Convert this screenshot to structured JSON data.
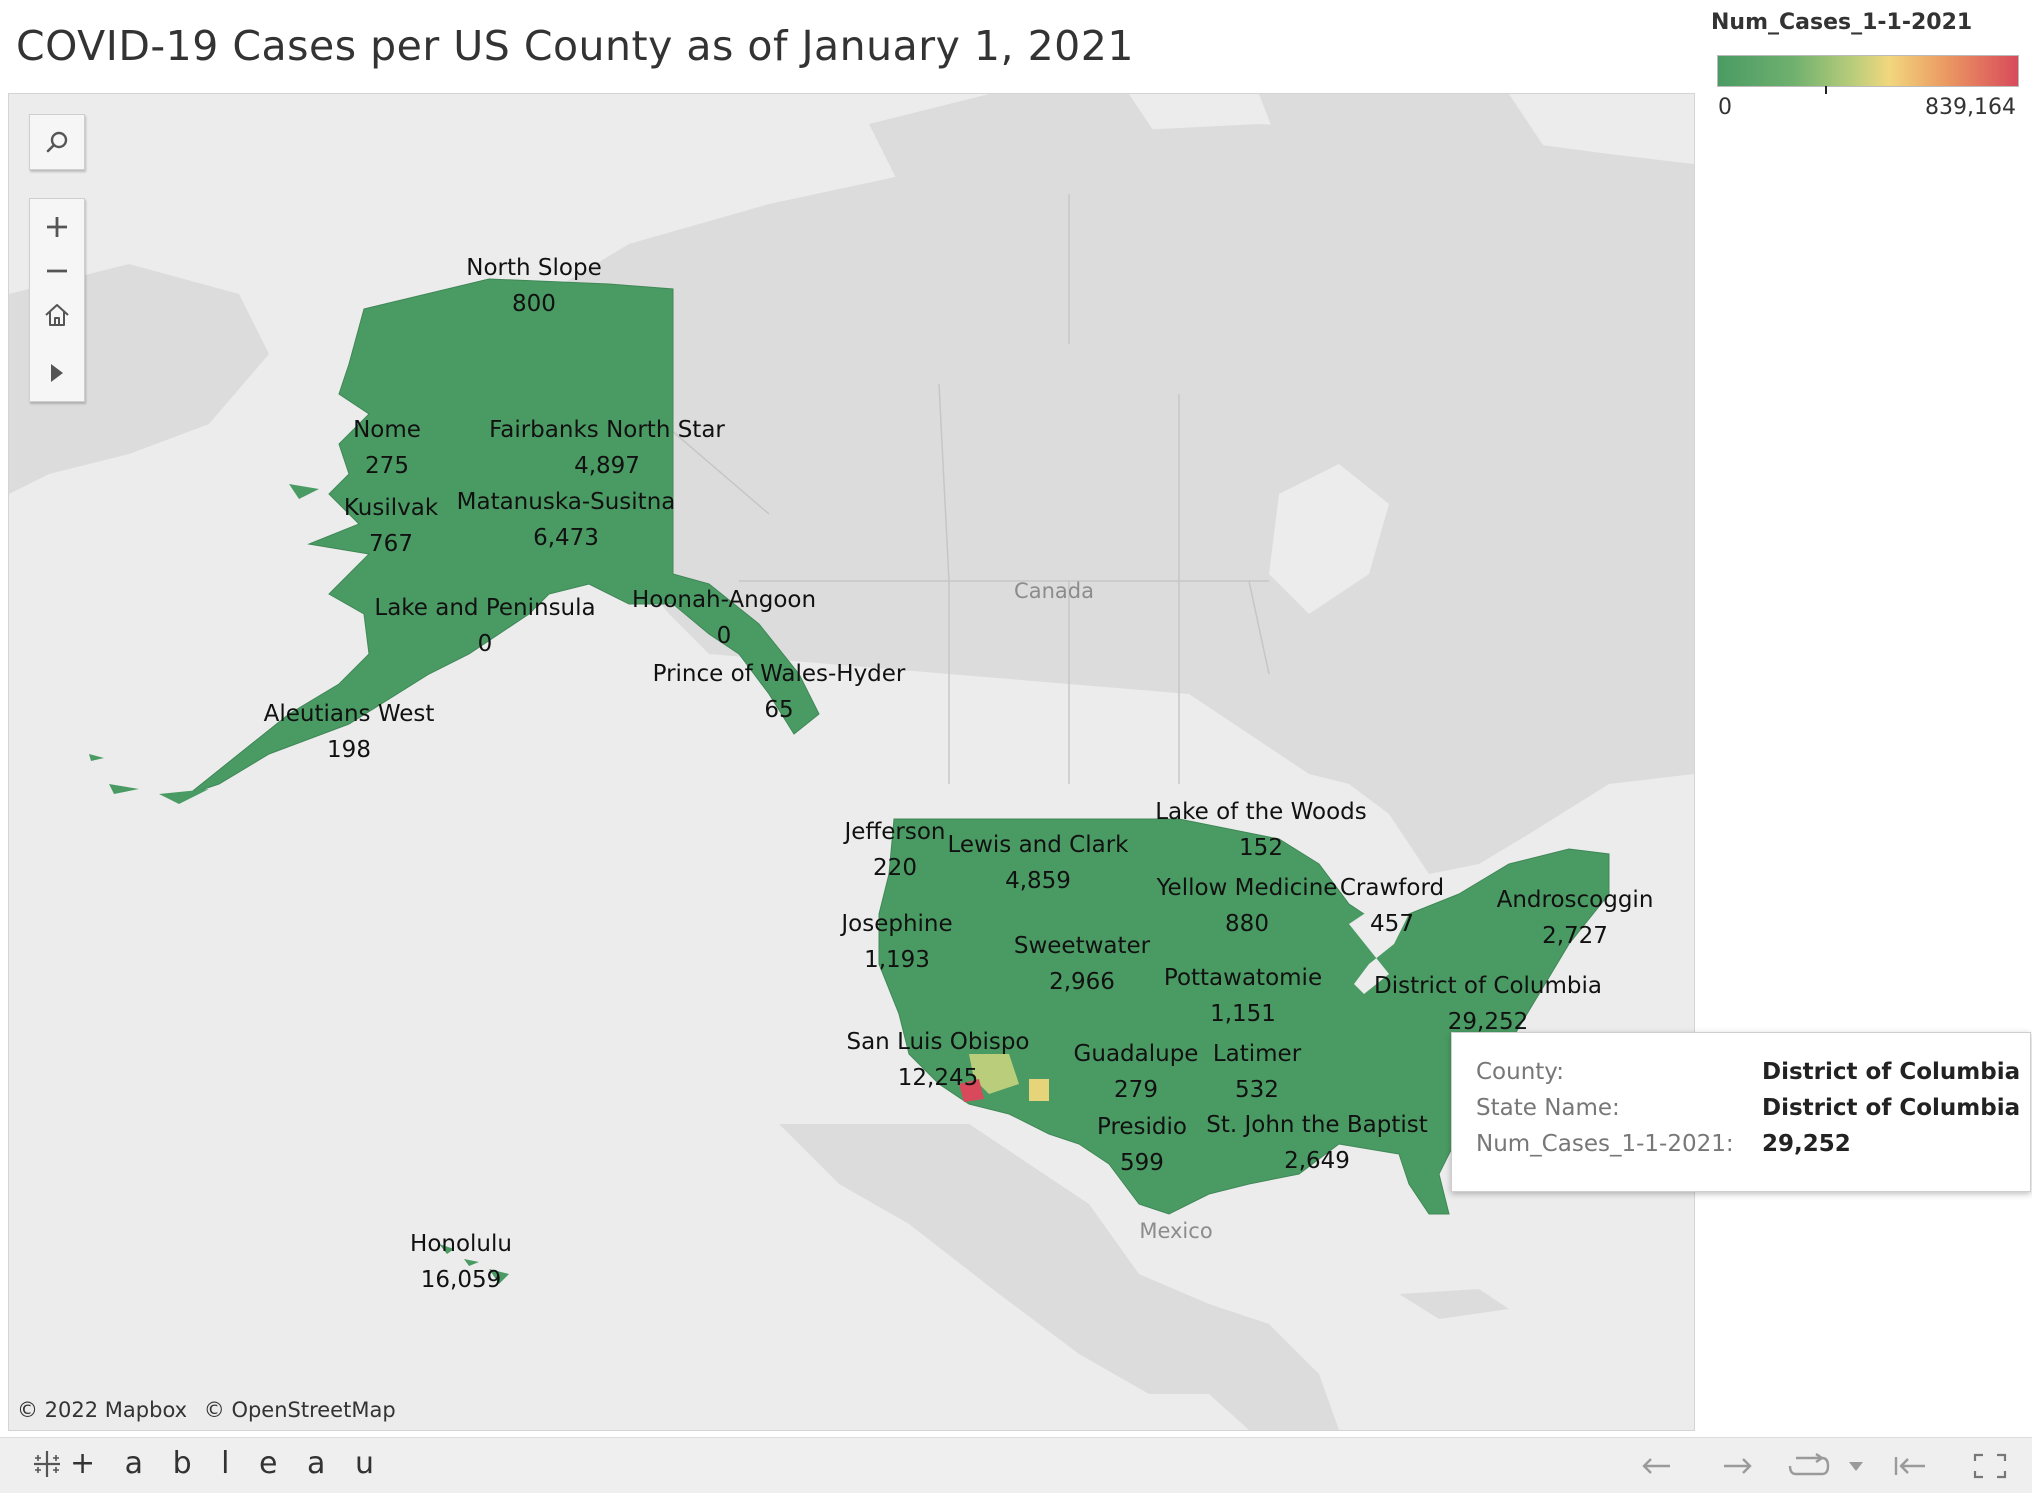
{
  "title": "COVID-19 Cases per US County as of January 1, 2021",
  "legend": {
    "title": "Num_Cases_1-1-2021",
    "min_label": "0",
    "max_label": "839,164",
    "min": 0,
    "max": 839164,
    "colors": [
      "#4a9b63",
      "#f1d77e",
      "#d84a5b"
    ]
  },
  "map": {
    "background_country_labels": [
      "Canada",
      "Mexico"
    ],
    "attribution": [
      "© 2022 Mapbox",
      "© OpenStreetMap"
    ],
    "colors": {
      "land": "#dcdcdc",
      "water": "#ececec",
      "county_low": "#4a9b63",
      "county_mid": "#b9cd7b",
      "county_high": "#d84a5b"
    },
    "labels": [
      {
        "county": "North Slope",
        "cases": "800"
      },
      {
        "county": "Nome",
        "cases": "275"
      },
      {
        "county": "Fairbanks North Star",
        "cases": "4,897"
      },
      {
        "county": "Kusilvak",
        "cases": "767"
      },
      {
        "county": "Matanuska-Susitna",
        "cases": "6,473"
      },
      {
        "county": "Lake and Peninsula",
        "cases": "0"
      },
      {
        "county": "Hoonah-Angoon",
        "cases": "0"
      },
      {
        "county": "Prince of Wales-Hyder",
        "cases": "65"
      },
      {
        "county": "Aleutians West",
        "cases": "198"
      },
      {
        "county": "Honolulu",
        "cases": "16,059"
      },
      {
        "county": "Jefferson",
        "cases": "220"
      },
      {
        "county": "Lewis and Clark",
        "cases": "4,859"
      },
      {
        "county": "Lake of the Woods",
        "cases": "152"
      },
      {
        "county": "Josephine",
        "cases": "1,193"
      },
      {
        "county": "Sweetwater",
        "cases": "2,966"
      },
      {
        "county": "Yellow Medicine",
        "cases": "880"
      },
      {
        "county": "Crawford",
        "cases": "457"
      },
      {
        "county": "Androscoggin",
        "cases": "2,727"
      },
      {
        "county": "Pottawatomie",
        "cases": "1,151"
      },
      {
        "county": "District of Columbia",
        "cases": "29,252"
      },
      {
        "county": "San Luis Obispo",
        "cases": "12,245"
      },
      {
        "county": "Guadalupe",
        "cases": "279"
      },
      {
        "county": "Latimer",
        "cases": "532"
      },
      {
        "county": "Presidio",
        "cases": "599"
      },
      {
        "county": "St. John the Baptist",
        "cases": "2,649"
      }
    ]
  },
  "tooltip": {
    "rows": [
      {
        "key": "County:",
        "value": "District of Columbia"
      },
      {
        "key": "State Name:",
        "value": "District of Columbia"
      },
      {
        "key": "Num_Cases_1-1-2021:",
        "value": "29,252"
      }
    ]
  },
  "controls": {
    "icons": [
      "search-icon",
      "zoom-in-icon",
      "zoom-out-icon",
      "home-icon",
      "play-icon"
    ]
  },
  "footer": {
    "brand": "+ a b l e a u",
    "icons": [
      "undo-icon",
      "redo-icon",
      "revert-icon",
      "dropdown-icon",
      "reset-icon",
      "fullscreen-icon"
    ]
  }
}
